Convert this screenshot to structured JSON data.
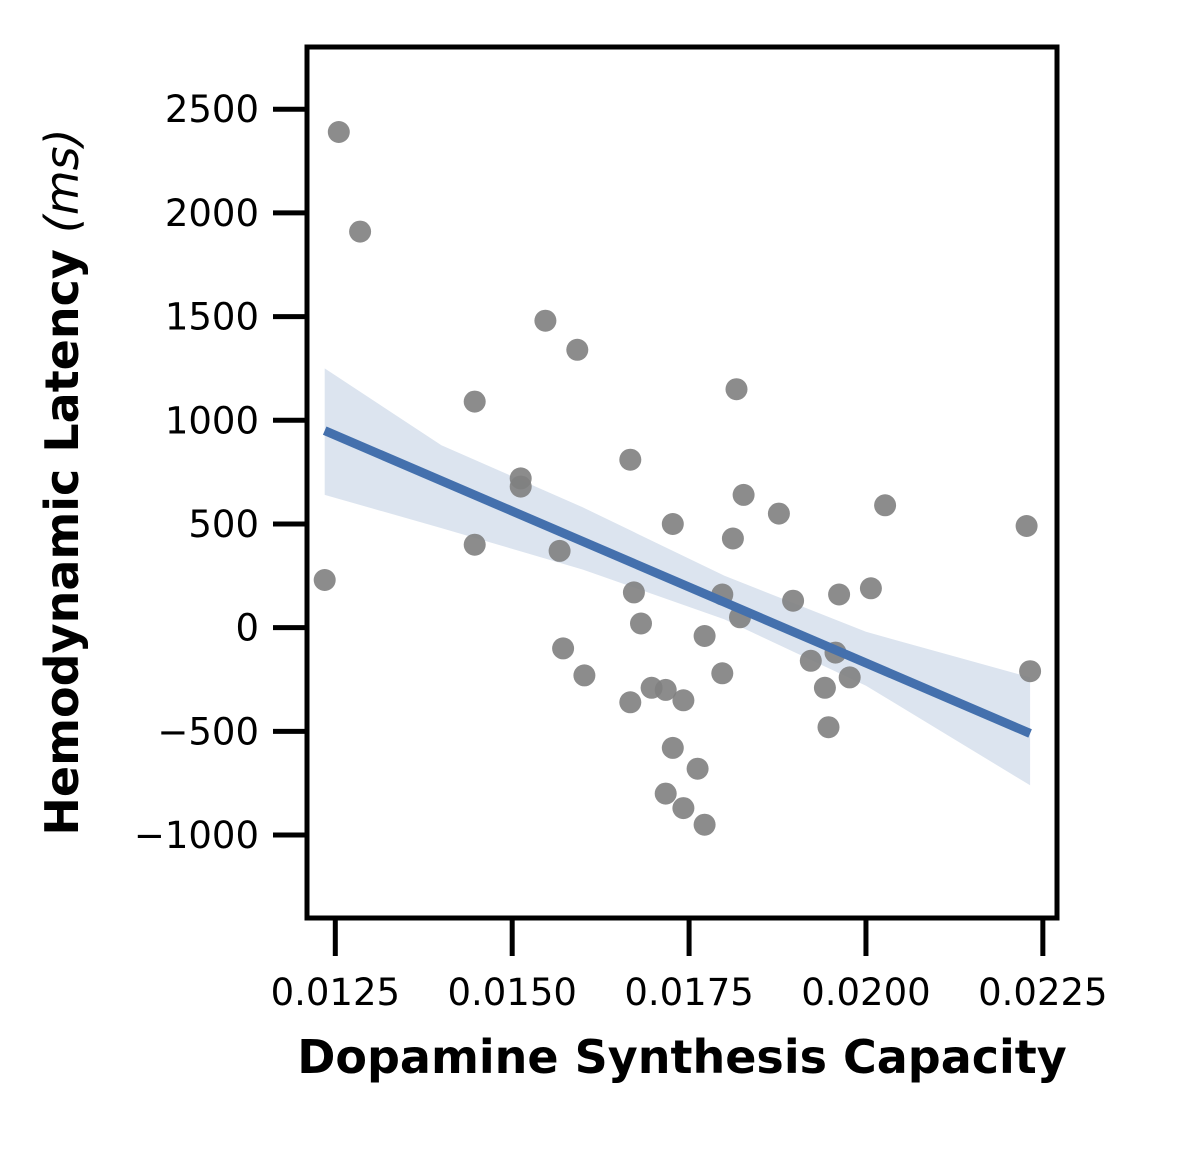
{
  "chart_data": {
    "type": "scatter",
    "xlabel": "Dopamine Synthesis Capacity",
    "ylabel": "Hemodynamic Latency",
    "ylabel_unit": "(ms)",
    "xlim": [
      0.0121,
      0.0227
    ],
    "ylim": [
      -1400,
      2800
    ],
    "x_ticks": [
      0.0125,
      0.015,
      0.0175,
      0.02,
      0.0225
    ],
    "x_tick_labels": [
      "0.0125",
      "0.0150",
      "0.0175",
      "0.0200",
      "0.0225"
    ],
    "y_ticks": [
      -1000,
      -500,
      0,
      500,
      1000,
      1500,
      2000,
      2500
    ],
    "y_tick_labels": [
      "−1000",
      "−500",
      "0",
      "500",
      "1000",
      "1500",
      "2000",
      "2500"
    ],
    "grid": false,
    "points": [
      {
        "x": 0.01235,
        "y": 230
      },
      {
        "x": 0.01255,
        "y": 2390
      },
      {
        "x": 0.01285,
        "y": 1910
      },
      {
        "x": 0.01447,
        "y": 1090
      },
      {
        "x": 0.01447,
        "y": 400
      },
      {
        "x": 0.01512,
        "y": 720
      },
      {
        "x": 0.01512,
        "y": 680
      },
      {
        "x": 0.01547,
        "y": 1480
      },
      {
        "x": 0.01567,
        "y": 370
      },
      {
        "x": 0.01572,
        "y": -100
      },
      {
        "x": 0.01592,
        "y": 1340
      },
      {
        "x": 0.01602,
        "y": -230
      },
      {
        "x": 0.01667,
        "y": 810
      },
      {
        "x": 0.01667,
        "y": -360
      },
      {
        "x": 0.01672,
        "y": 170
      },
      {
        "x": 0.01682,
        "y": 20
      },
      {
        "x": 0.01697,
        "y": -290
      },
      {
        "x": 0.01717,
        "y": -300
      },
      {
        "x": 0.01717,
        "y": -800
      },
      {
        "x": 0.01727,
        "y": 500
      },
      {
        "x": 0.01727,
        "y": -580
      },
      {
        "x": 0.01742,
        "y": -350
      },
      {
        "x": 0.01742,
        "y": -870
      },
      {
        "x": 0.01762,
        "y": -680
      },
      {
        "x": 0.01772,
        "y": -40
      },
      {
        "x": 0.01772,
        "y": -950
      },
      {
        "x": 0.01797,
        "y": 160
      },
      {
        "x": 0.01797,
        "y": -220
      },
      {
        "x": 0.01812,
        "y": 430
      },
      {
        "x": 0.01817,
        "y": 1150
      },
      {
        "x": 0.01822,
        "y": 50
      },
      {
        "x": 0.01827,
        "y": 640
      },
      {
        "x": 0.01877,
        "y": 550
      },
      {
        "x": 0.01897,
        "y": 130
      },
      {
        "x": 0.01922,
        "y": -160
      },
      {
        "x": 0.01942,
        "y": -290
      },
      {
        "x": 0.01947,
        "y": -480
      },
      {
        "x": 0.01957,
        "y": -120
      },
      {
        "x": 0.01962,
        "y": 160
      },
      {
        "x": 0.01977,
        "y": -240
      },
      {
        "x": 0.02007,
        "y": 190
      },
      {
        "x": 0.02027,
        "y": 590
      },
      {
        "x": 0.02227,
        "y": 490
      },
      {
        "x": 0.02232,
        "y": -210
      }
    ],
    "regression": {
      "x": [
        0.01235,
        0.02232
      ],
      "y": [
        950,
        -510
      ]
    },
    "confidence_band": {
      "x": [
        0.01235,
        0.014,
        0.016,
        0.018,
        0.02,
        0.02232
      ],
      "upper": [
        1250,
        880,
        580,
        250,
        -20,
        -240
      ],
      "lower": [
        640,
        480,
        280,
        40,
        -280,
        -760
      ]
    },
    "colors": {
      "points": "#808080",
      "line": "#4470ad",
      "band": "#dce4ef",
      "axes": "#000000"
    }
  }
}
